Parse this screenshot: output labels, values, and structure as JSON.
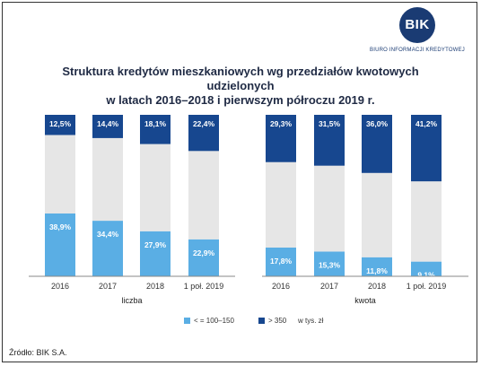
{
  "logo": {
    "text": "BIK",
    "subtitle": "BIURO INFORMACJI KREDYTOWEJ"
  },
  "title_line1": "Struktura kredytów mieszkaniowych wg przedziałów kwotowych udzielonych",
  "title_line2": "w latach 2016–2018 i pierwszym półroczu 2019 r.",
  "source": "Źródło: BIK S.A.",
  "colors": {
    "low": "#5aaee4",
    "mid": "#e6e6e6",
    "high": "#17478f",
    "axis": "#888888"
  },
  "legend": {
    "low": "< = 100–150",
    "high": "> 350",
    "unit": "w tys. zł"
  },
  "chart_data": [
    {
      "type": "bar",
      "stacked": true,
      "xlabel": "liczba",
      "categories": [
        "2016",
        "2017",
        "2018",
        "1 poł. 2019"
      ],
      "series": [
        {
          "name": "< = 100–150",
          "values": [
            38.9,
            34.4,
            27.9,
            22.9
          ],
          "labels": [
            "38,9%",
            "34,4%",
            "27,9%",
            "22,9%"
          ]
        },
        {
          "values": [
            48.6,
            51.2,
            54.0,
            54.7
          ]
        },
        {
          "name": "> 350",
          "values": [
            12.5,
            14.4,
            18.1,
            22.4
          ],
          "labels": [
            "12,5%",
            "14,4%",
            "18,1%",
            "22,4%"
          ]
        }
      ],
      "ylim": [
        0,
        100
      ]
    },
    {
      "type": "bar",
      "stacked": true,
      "xlabel": "kwota",
      "categories": [
        "2016",
        "2017",
        "2018",
        "1 poł. 2019"
      ],
      "series": [
        {
          "name": "< = 100–150",
          "values": [
            17.8,
            15.3,
            11.8,
            9.1
          ],
          "labels": [
            "17,8%",
            "15,3%",
            "11,8%",
            "9,1%"
          ]
        },
        {
          "values": [
            52.9,
            53.2,
            52.2,
            49.7
          ]
        },
        {
          "name": "> 350",
          "values": [
            29.3,
            31.5,
            36.0,
            41.2
          ],
          "labels": [
            "29,3%",
            "31,5%",
            "36,0%",
            "41,2%"
          ]
        }
      ],
      "ylim": [
        0,
        100
      ]
    }
  ]
}
